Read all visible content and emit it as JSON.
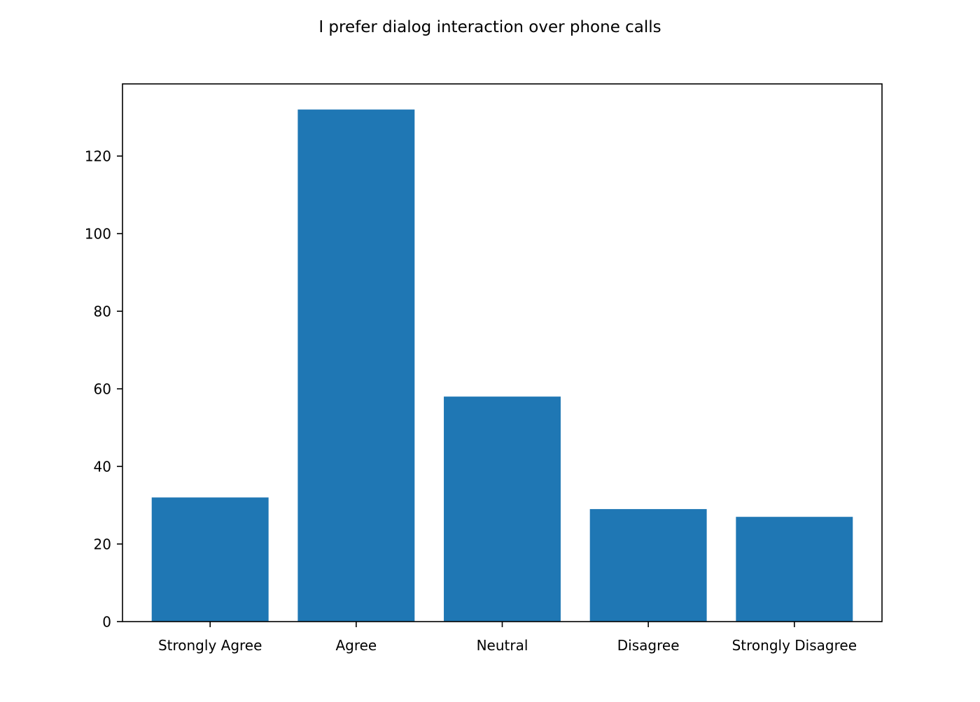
{
  "chart_data": {
    "type": "bar",
    "title": "I prefer dialog interaction over phone calls",
    "xlabel": "",
    "ylabel": "",
    "categories": [
      "Strongly Agree",
      "Agree",
      "Neutral",
      "Disagree",
      "Strongly Disagree"
    ],
    "values": [
      32,
      132,
      58,
      29,
      27
    ],
    "ylim": [
      0,
      138.6
    ],
    "yticks": [
      0,
      20,
      40,
      60,
      80,
      100,
      120
    ],
    "grid": false,
    "legend": "none",
    "colors": {
      "bar": "#1f77b4",
      "axis": "#000000",
      "background": "#ffffff"
    }
  }
}
